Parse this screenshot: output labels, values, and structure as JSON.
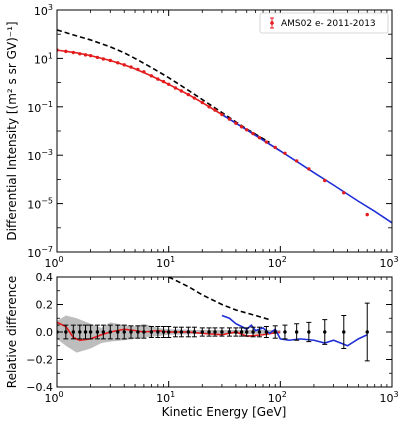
{
  "chart_data": [
    {
      "type": "line",
      "panel": "top",
      "xlabel": "",
      "ylabel": "Differential Intensity [(m² s sr GV)⁻¹]",
      "xscale": "log",
      "yscale": "log",
      "xlim": [
        1,
        1000
      ],
      "ylim": [
        1e-07,
        1000
      ],
      "x_ticks": [
        1,
        10,
        100,
        1000
      ],
      "x_tick_labels": [
        {
          "b": "10",
          "e": "0"
        },
        {
          "b": "10",
          "e": "1"
        },
        {
          "b": "10",
          "e": "2"
        },
        {
          "b": "10",
          "e": "3"
        }
      ],
      "y_ticks": [
        1e-07,
        1e-05,
        0.001,
        0.1,
        10,
        1000
      ],
      "y_tick_labels": [
        {
          "b": "10",
          "e": "−7"
        },
        {
          "b": "10",
          "e": "−5"
        },
        {
          "b": "10",
          "e": "−3"
        },
        {
          "b": "10",
          "e": "−1"
        },
        {
          "b": "10",
          "e": "1"
        },
        {
          "b": "10",
          "e": "3"
        }
      ],
      "grid": false,
      "legend": {
        "placement": "top-right",
        "entries": [
          "AMS02 e- 2011-2013"
        ]
      },
      "series": [
        {
          "style": "dashed",
          "color": "#000000",
          "x": [
            1,
            1.5,
            2,
            3,
            4,
            5,
            7,
            10,
            15,
            20,
            30,
            50,
            80
          ],
          "y": [
            150,
            85,
            58,
            30,
            17,
            10,
            4.2,
            1.6,
            0.48,
            0.2,
            0.058,
            0.012,
            0.0034
          ]
        },
        {
          "style": "solid",
          "color": "#e41a1c",
          "x": [
            1,
            1.5,
            2,
            3,
            4,
            5,
            7,
            10,
            15,
            20,
            30,
            50,
            70,
            100
          ],
          "y": [
            22,
            17,
            13,
            8.2,
            5.4,
            3.7,
            1.9,
            0.85,
            0.32,
            0.15,
            0.048,
            0.0112,
            0.0042,
            0.0015
          ]
        },
        {
          "style": "solid",
          "color": "#1f2fd6",
          "x": [
            30,
            50,
            100,
            150,
            200,
            300,
            500,
            700,
            1000
          ],
          "y": [
            0.048,
            0.0112,
            0.0015,
            0.00045,
            0.00019,
            5.8e-05,
            1.25e-05,
            4.8e-06,
            1.6e-06
          ]
        },
        {
          "name": "AMS02 e- 2011-2013",
          "style": "errorbar",
          "color": "#e41a1c",
          "x": [
            1.0,
            1.2,
            1.4,
            1.6,
            1.8,
            2.0,
            2.3,
            2.6,
            3.0,
            3.5,
            4.0,
            4.6,
            5.3,
            6.0,
            7.0,
            8.0,
            9.0,
            10.0,
            11.5,
            13.0,
            15.0,
            17.0,
            20.0,
            23.0,
            26.0,
            30.0,
            35.0,
            40.0,
            45.0,
            50.0,
            57.0,
            65.0,
            75.0,
            90.0,
            110.0,
            140.0,
            180.0,
            250.0,
            370.0,
            600.0
          ],
          "y": [
            22.0,
            19.5,
            17.5,
            15.5,
            14.0,
            13.0,
            11.0,
            9.5,
            8.2,
            6.6,
            5.4,
            4.4,
            3.5,
            2.8,
            1.9,
            1.4,
            1.1,
            0.85,
            0.6,
            0.45,
            0.32,
            0.23,
            0.15,
            0.1,
            0.073,
            0.048,
            0.031,
            0.021,
            0.015,
            0.0112,
            0.0078,
            0.0053,
            0.0035,
            0.0021,
            0.0012,
            0.00058,
            0.00027,
            9e-05,
            2.8e-05,
            3.5e-06
          ]
        }
      ]
    },
    {
      "type": "line",
      "panel": "bottom",
      "xlabel": "Kinetic Energy [GeV]",
      "ylabel": "Relative difference",
      "xscale": "log",
      "xlim": [
        1,
        1000
      ],
      "ylim": [
        -0.4,
        0.4
      ],
      "x_ticks": [
        1,
        10,
        100,
        1000
      ],
      "x_tick_labels": [
        {
          "b": "10",
          "e": "0"
        },
        {
          "b": "10",
          "e": "1"
        },
        {
          "b": "10",
          "e": "2"
        },
        {
          "b": "10",
          "e": "3"
        }
      ],
      "y_ticks": [
        -0.4,
        -0.2,
        0.0,
        0.2,
        0.4
      ],
      "y_tick_labels": [
        "−0.4",
        "−0.2",
        "0.0",
        "0.2",
        "0.4"
      ],
      "grid": false,
      "band": {
        "color": "#bdbdbd",
        "x": [
          1.0,
          1.2,
          1.5,
          2.0,
          2.5,
          3.0,
          4.0,
          5.0,
          6.0,
          8.0,
          10.0,
          20.0,
          50.0,
          100.0
        ],
        "upper": [
          0.08,
          0.12,
          0.1,
          0.06,
          0.03,
          0.07,
          0.05,
          0.04,
          0.06,
          0.03,
          0.02,
          0.015,
          0.015,
          0.015
        ],
        "lower": [
          -0.05,
          -0.1,
          -0.15,
          -0.12,
          -0.08,
          -0.07,
          -0.06,
          -0.05,
          -0.04,
          -0.03,
          -0.02,
          -0.015,
          -0.015,
          -0.015
        ]
      },
      "series": [
        {
          "style": "dashed",
          "color": "#000000",
          "x": [
            10,
            15,
            20,
            30,
            40,
            60,
            80
          ],
          "y": [
            0.4,
            0.33,
            0.27,
            0.2,
            0.16,
            0.12,
            0.09
          ]
        },
        {
          "style": "solid",
          "color": "#e41a1c",
          "x": [
            1.0,
            1.2,
            1.4,
            1.6,
            2.0,
            2.5,
            3.0,
            4.0,
            5.0,
            6.0,
            8.0,
            10.0,
            15.0,
            20.0,
            30.0,
            40.0,
            50.0,
            70.0,
            100.0
          ],
          "y": [
            0.07,
            0.04,
            -0.04,
            -0.06,
            -0.05,
            -0.02,
            0.0,
            0.02,
            0.01,
            0.0,
            0.01,
            0.0,
            0.0,
            -0.01,
            -0.02,
            0.0,
            -0.03,
            -0.02,
            0.0
          ]
        },
        {
          "style": "solid",
          "color": "#1f2fd6",
          "x": [
            30.0,
            35.0,
            40.0,
            45.0,
            50.0,
            55.0,
            60.0,
            70.0,
            80.0,
            90.0,
            100.0,
            120.0,
            150.0,
            200.0,
            250.0,
            300.0,
            400.0,
            500.0,
            600.0
          ],
          "y": [
            0.12,
            0.1,
            0.06,
            0.04,
            0.02,
            0.05,
            0.01,
            0.03,
            -0.01,
            0.02,
            -0.05,
            -0.06,
            -0.05,
            -0.06,
            -0.08,
            -0.06,
            -0.1,
            -0.05,
            -0.02
          ]
        },
        {
          "style": "errorbar",
          "color": "#000000",
          "x": [
            1.0,
            1.2,
            1.4,
            1.6,
            1.8,
            2.0,
            2.3,
            2.6,
            3.0,
            3.5,
            4.0,
            4.6,
            5.3,
            6.0,
            7.0,
            8.0,
            9.0,
            10.0,
            11.5,
            13.0,
            15.0,
            17.0,
            20.0,
            23.0,
            26.0,
            30.0,
            35.0,
            40.0,
            45.0,
            50.0,
            57.0,
            65.0,
            75.0,
            90.0,
            110.0,
            140.0,
            180.0,
            250.0,
            370.0,
            600.0
          ],
          "y": [
            0.0,
            0.0,
            0.0,
            0.0,
            0.0,
            0.0,
            0.0,
            0.0,
            0.0,
            0.0,
            0.0,
            0.0,
            0.0,
            0.0,
            0.0,
            0.0,
            0.0,
            0.0,
            0.0,
            0.0,
            0.0,
            0.0,
            0.0,
            0.0,
            0.0,
            0.0,
            0.0,
            0.0,
            0.0,
            0.0,
            0.0,
            0.0,
            0.0,
            0.0,
            0.0,
            0.0,
            0.0,
            0.0,
            0.0,
            0.0
          ],
          "err": [
            0.05,
            0.05,
            0.05,
            0.05,
            0.05,
            0.05,
            0.05,
            0.05,
            0.05,
            0.05,
            0.05,
            0.045,
            0.045,
            0.045,
            0.04,
            0.04,
            0.04,
            0.04,
            0.035,
            0.035,
            0.035,
            0.035,
            0.03,
            0.03,
            0.03,
            0.03,
            0.03,
            0.03,
            0.03,
            0.03,
            0.035,
            0.035,
            0.04,
            0.045,
            0.05,
            0.06,
            0.07,
            0.09,
            0.12,
            0.21
          ]
        }
      ]
    }
  ]
}
